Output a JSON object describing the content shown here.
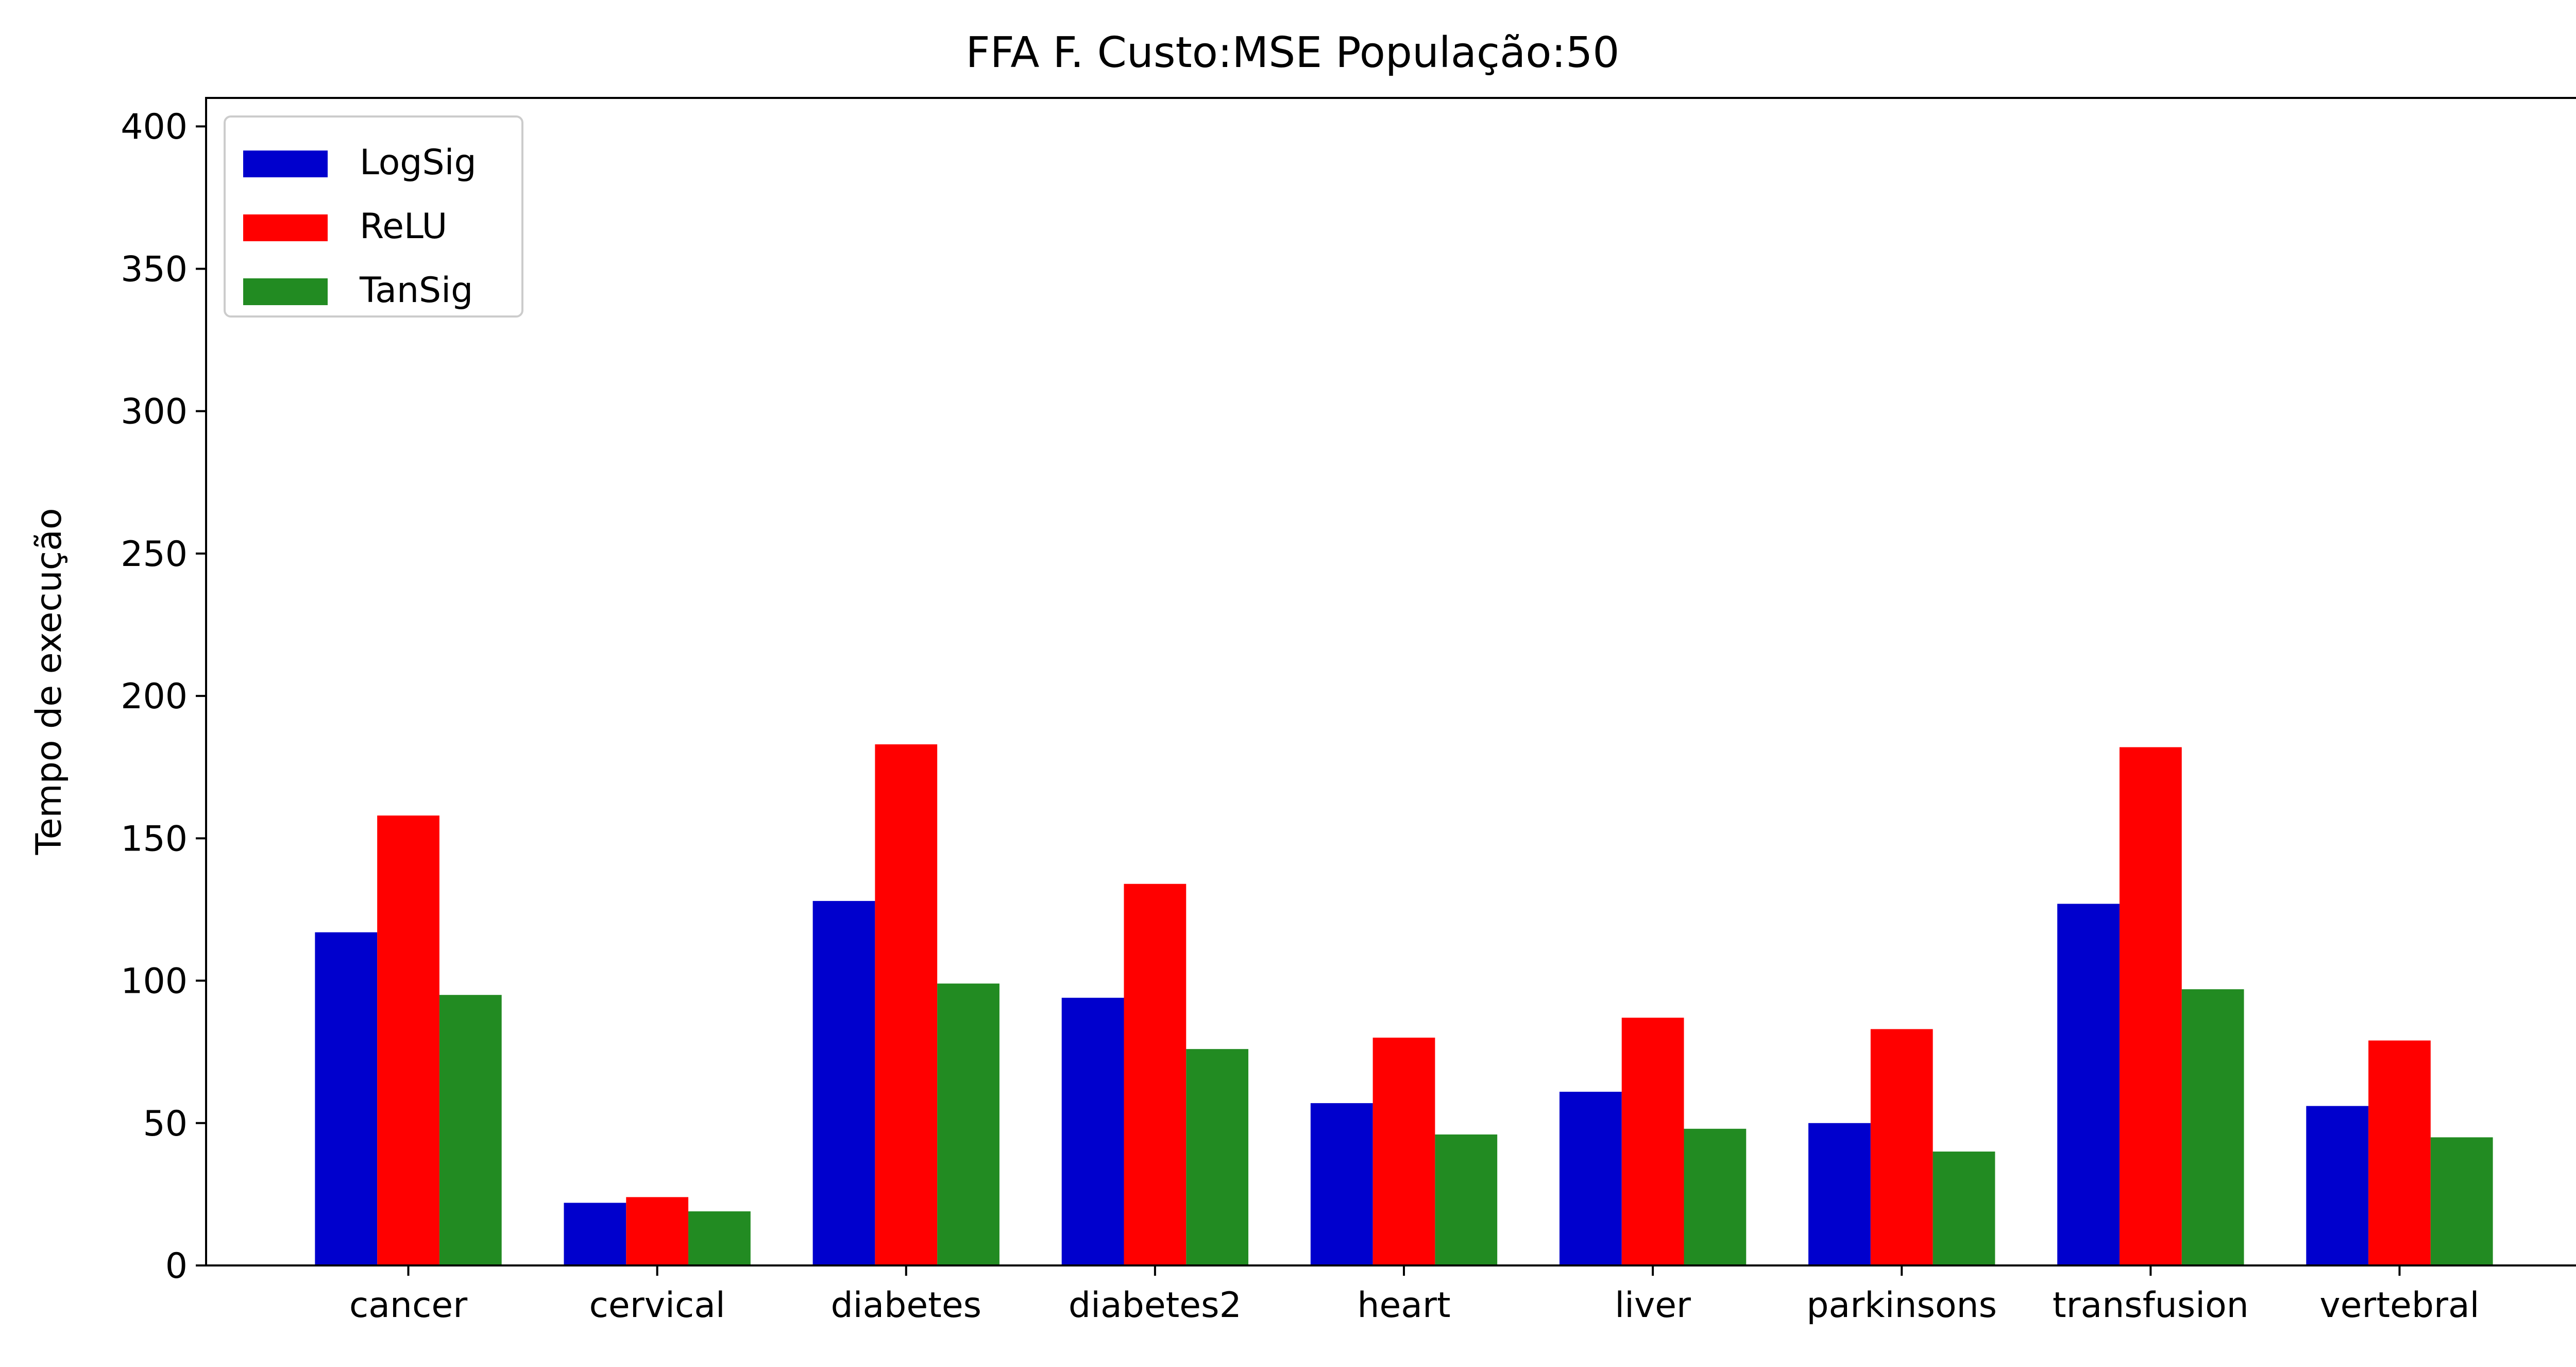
{
  "chart_data": {
    "type": "bar",
    "title": "FFA F. Custo:MSE População:50",
    "xlabel": "",
    "ylabel": "Tempo de execução",
    "ylim": [
      0,
      410
    ],
    "yticks": [
      0,
      50,
      100,
      150,
      200,
      250,
      300,
      350,
      400
    ],
    "grid": false,
    "legend_position": "top-left",
    "categories": [
      "cancer",
      "cervical",
      "diabetes",
      "diabetes2",
      "heart",
      "liver",
      "parkinsons",
      "transfusion",
      "vertebral"
    ],
    "series": [
      {
        "name": "LogSig",
        "color": "#0000cd",
        "values": [
          117,
          22,
          128,
          94,
          57,
          61,
          50,
          127,
          56
        ]
      },
      {
        "name": "ReLU",
        "color": "#ff0000",
        "values": [
          158,
          24,
          183,
          134,
          80,
          87,
          83,
          182,
          79
        ]
      },
      {
        "name": "TanSig",
        "color": "#228b22",
        "values": [
          95,
          19,
          99,
          76,
          46,
          48,
          40,
          97,
          45
        ]
      }
    ]
  }
}
